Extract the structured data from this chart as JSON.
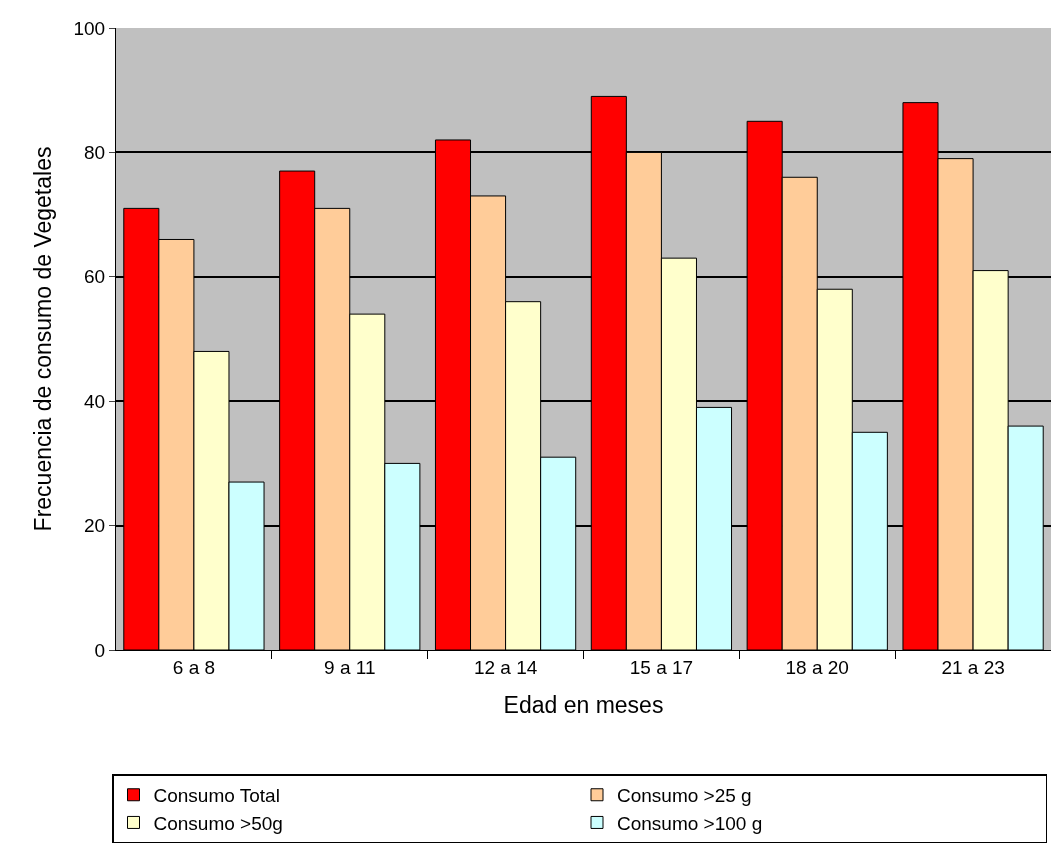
{
  "chart_data": {
    "type": "bar",
    "xlabel": "Edad en meses",
    "ylabel": "Frecuencia de consumo de Vegetales",
    "categories": [
      "6 a 8",
      "9 a 11",
      "12 a 14",
      "15 a 17",
      "18 a 20",
      "21 a 23"
    ],
    "series": [
      {
        "name": "Consumo Total",
        "color": "#ff0000",
        "values": [
          71,
          77,
          82,
          89,
          85,
          88
        ]
      },
      {
        "name": "Consumo >25 g",
        "color": "#ffcc99",
        "values": [
          66,
          71,
          73,
          80,
          76,
          79
        ]
      },
      {
        "name": "Consumo >50g",
        "color": "#ffffcc",
        "values": [
          48,
          54,
          56,
          63,
          58,
          61
        ]
      },
      {
        "name": "Consumo >100 g",
        "color": "#ccffff",
        "values": [
          27,
          30,
          31,
          39,
          35,
          36
        ]
      }
    ],
    "ylim": [
      0,
      100
    ],
    "yticks": [
      0,
      20,
      40,
      60,
      80,
      100
    ],
    "grid": "y",
    "legend": "bottom"
  }
}
